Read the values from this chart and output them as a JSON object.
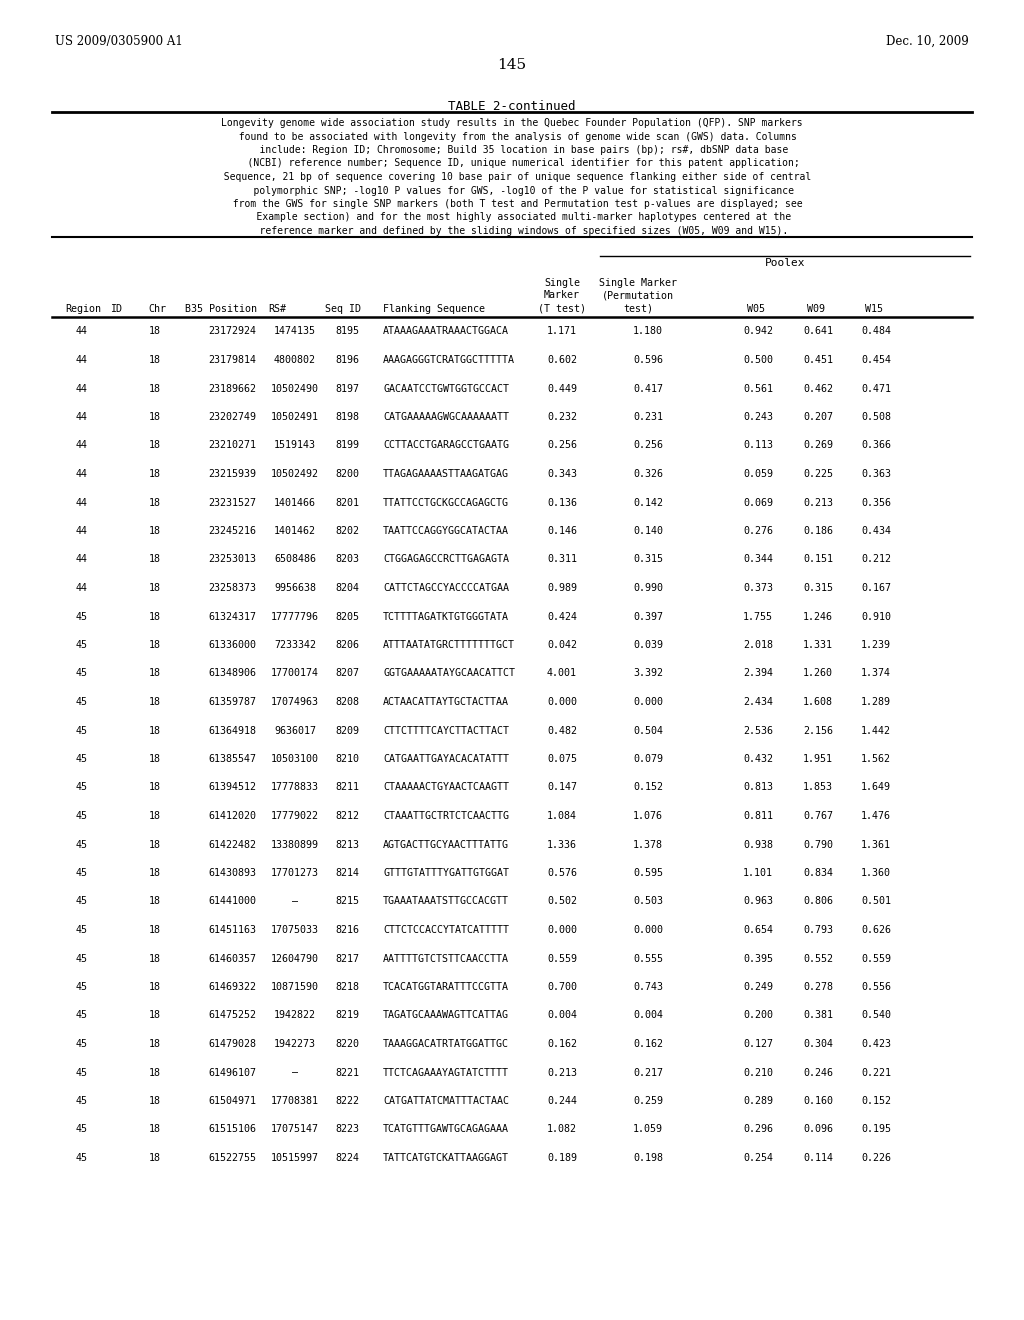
{
  "header_left": "US 2009/0305900 A1",
  "header_right": "Dec. 10, 2009",
  "page_number": "145",
  "table_title": "TABLE 2-continued",
  "poolex_label": "Poolex",
  "desc_lines": [
    "Longevity genome wide association study results in the Quebec Founder Population (QFP). SNP markers",
    "  found to be associated with longevity from the analysis of genome wide scan (GWS) data. Columns",
    "    include: Region ID; Chromosome; Build 35 location in base pairs (bp); rs#, dbSNP data base",
    "    (NCBI) reference number; Sequence ID, unique numerical identifier for this patent application;",
    "  Sequence, 21 bp of sequence covering 10 base pair of unique sequence flanking either side of central",
    "    polymorphic SNP; -log10 P values for GWS, -log10 of the P value for statistical significance",
    "  from the GWS for single SNP markers (both T test and Permutation test p-values are displayed; see",
    "    Example section) and for the most highly associated multi-marker haplotypes centered at the",
    "    reference marker and defined by the sliding windows of specified sizes (W05, W09 and W15)."
  ],
  "col_headers_line1": [
    "Region",
    "ID",
    "Chr",
    "B35 Position",
    "RS#",
    "Seq ID",
    "Flanking Sequence",
    "Single",
    "Single Marker",
    "W05",
    "W09",
    "W15"
  ],
  "col_headers_line2": [
    "",
    "",
    "",
    "",
    "",
    "",
    "",
    "Marker",
    "(Permutation",
    "",
    "",
    ""
  ],
  "col_headers_line3": [
    "",
    "",
    "",
    "",
    "",
    "",
    "",
    "(T test)",
    "test)",
    "",
    "",
    ""
  ],
  "rows": [
    [
      "44",
      "18",
      "23172924",
      "1474135",
      "8195",
      "ATAAAGAAATRAAACTGGACA",
      "1.171",
      "1.180",
      "0.942",
      "0.641",
      "0.484"
    ],
    [
      "44",
      "18",
      "23179814",
      "4800802",
      "8196",
      "AAAGAGGGTCRATGGCTTTTTA",
      "0.602",
      "0.596",
      "0.500",
      "0.451",
      "0.454"
    ],
    [
      "44",
      "18",
      "23189662",
      "10502490",
      "8197",
      "GACAATCCTGWTGGTGCCACT",
      "0.449",
      "0.417",
      "0.561",
      "0.462",
      "0.471"
    ],
    [
      "44",
      "18",
      "23202749",
      "10502491",
      "8198",
      "CATGAAAAAGWGCAAAAAATT",
      "0.232",
      "0.231",
      "0.243",
      "0.207",
      "0.508"
    ],
    [
      "44",
      "18",
      "23210271",
      "1519143",
      "8199",
      "CCTTACCTGARAGCCTGAATG",
      "0.256",
      "0.256",
      "0.113",
      "0.269",
      "0.366"
    ],
    [
      "44",
      "18",
      "23215939",
      "10502492",
      "8200",
      "TTAGAGAAAASTTAAGATGAG",
      "0.343",
      "0.326",
      "0.059",
      "0.225",
      "0.363"
    ],
    [
      "44",
      "18",
      "23231527",
      "1401466",
      "8201",
      "TTATTCCTGCKGCCAGAGCTG",
      "0.136",
      "0.142",
      "0.069",
      "0.213",
      "0.356"
    ],
    [
      "44",
      "18",
      "23245216",
      "1401462",
      "8202",
      "TAATTCCAGGYGGCATACTAA",
      "0.146",
      "0.140",
      "0.276",
      "0.186",
      "0.434"
    ],
    [
      "44",
      "18",
      "23253013",
      "6508486",
      "8203",
      "CTGGAGAGCCRCTTGAGAGTA",
      "0.311",
      "0.315",
      "0.344",
      "0.151",
      "0.212"
    ],
    [
      "44",
      "18",
      "23258373",
      "9956638",
      "8204",
      "CATTCTAGCCYACCCCATGAA",
      "0.989",
      "0.990",
      "0.373",
      "0.315",
      "0.167"
    ],
    [
      "45",
      "18",
      "61324317",
      "17777796",
      "8205",
      "TCTTTTAGATKTGTGGGTATA",
      "0.424",
      "0.397",
      "1.755",
      "1.246",
      "0.910"
    ],
    [
      "45",
      "18",
      "61336000",
      "7233342",
      "8206",
      "ATTTAATATGRCTTTTTTTGCT",
      "0.042",
      "0.039",
      "2.018",
      "1.331",
      "1.239"
    ],
    [
      "45",
      "18",
      "61348906",
      "17700174",
      "8207",
      "GGTGAAAAATAYGCAACATTCT",
      "4.001",
      "3.392",
      "2.394",
      "1.260",
      "1.374"
    ],
    [
      "45",
      "18",
      "61359787",
      "17074963",
      "8208",
      "ACTAACATTAYTGCTACTTAA",
      "0.000",
      "0.000",
      "2.434",
      "1.608",
      "1.289"
    ],
    [
      "45",
      "18",
      "61364918",
      "9636017",
      "8209",
      "CTTCTTTTCAYCTTACTTACT",
      "0.482",
      "0.504",
      "2.536",
      "2.156",
      "1.442"
    ],
    [
      "45",
      "18",
      "61385547",
      "10503100",
      "8210",
      "CATGAATTGAYACACATATTT",
      "0.075",
      "0.079",
      "0.432",
      "1.951",
      "1.562"
    ],
    [
      "45",
      "18",
      "61394512",
      "17778833",
      "8211",
      "CTAAAAACTGYAACTCAAGTT",
      "0.147",
      "0.152",
      "0.813",
      "1.853",
      "1.649"
    ],
    [
      "45",
      "18",
      "61412020",
      "17779022",
      "8212",
      "CTAAATTGCTRTCTCAACTTG",
      "1.084",
      "1.076",
      "0.811",
      "0.767",
      "1.476"
    ],
    [
      "45",
      "18",
      "61422482",
      "13380899",
      "8213",
      "AGTGACTTGCYAACTTTATTG",
      "1.336",
      "1.378",
      "0.938",
      "0.790",
      "1.361"
    ],
    [
      "45",
      "18",
      "61430893",
      "17701273",
      "8214",
      "GTTTGTATTTYGATTGTGGAT",
      "0.576",
      "0.595",
      "1.101",
      "0.834",
      "1.360"
    ],
    [
      "45",
      "18",
      "61441000",
      "–",
      "8215",
      "TGAAATAAATSTTGCCACGTT",
      "0.502",
      "0.503",
      "0.963",
      "0.806",
      "0.501"
    ],
    [
      "45",
      "18",
      "61451163",
      "17075033",
      "8216",
      "CTTCTCCACCYTATCATTTTT",
      "0.000",
      "0.000",
      "0.654",
      "0.793",
      "0.626"
    ],
    [
      "45",
      "18",
      "61460357",
      "12604790",
      "8217",
      "AATTTTGTCTSTTCAACCTTA",
      "0.559",
      "0.555",
      "0.395",
      "0.552",
      "0.559"
    ],
    [
      "45",
      "18",
      "61469322",
      "10871590",
      "8218",
      "TCACATGGTARATTTCCGTTA",
      "0.700",
      "0.743",
      "0.249",
      "0.278",
      "0.556"
    ],
    [
      "45",
      "18",
      "61475252",
      "1942822",
      "8219",
      "TAGATGCAAAWAGTTCATTAG",
      "0.004",
      "0.004",
      "0.200",
      "0.381",
      "0.540"
    ],
    [
      "45",
      "18",
      "61479028",
      "1942273",
      "8220",
      "TAAAGGACATRTATGGATTGC",
      "0.162",
      "0.162",
      "0.127",
      "0.304",
      "0.423"
    ],
    [
      "45",
      "18",
      "61496107",
      "–",
      "8221",
      "TTCTCAGAAAYAGTATCTTTT",
      "0.213",
      "0.217",
      "0.210",
      "0.246",
      "0.221"
    ],
    [
      "45",
      "18",
      "61504971",
      "17708381",
      "8222",
      "CATGATTATCMATTTACTAAC",
      "0.244",
      "0.259",
      "0.289",
      "0.160",
      "0.152"
    ],
    [
      "45",
      "18",
      "61515106",
      "17075147",
      "8223",
      "TCATGTTTGAWTGCAGAGAAA",
      "1.082",
      "1.059",
      "0.296",
      "0.096",
      "0.195"
    ],
    [
      "45",
      "18",
      "61522755",
      "10515997",
      "8224",
      "TATTCATGTCKATTAAGGAGT",
      "0.189",
      "0.198",
      "0.254",
      "0.114",
      "0.226"
    ]
  ]
}
